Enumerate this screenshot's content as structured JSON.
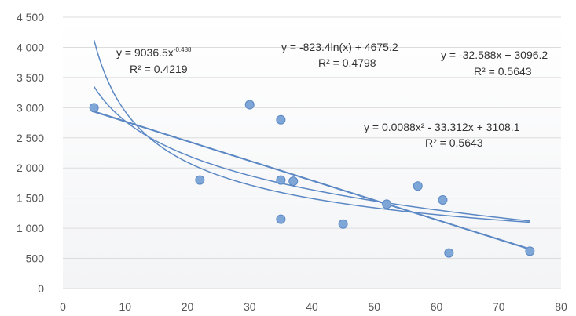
{
  "chart_data": {
    "type": "scatter",
    "title": "",
    "xlabel": "",
    "ylabel": "",
    "xlim": [
      0,
      80
    ],
    "ylim": [
      0,
      4500
    ],
    "x_ticks": [
      0,
      10,
      20,
      30,
      40,
      50,
      60,
      70,
      80
    ],
    "y_ticks": [
      0,
      500,
      1000,
      1500,
      2000,
      2500,
      3000,
      3500,
      4000,
      4500
    ],
    "y_tick_labels": [
      "0",
      "500",
      "1 000",
      "1 500",
      "2 000",
      "2 500",
      "3 000",
      "3 500",
      "4 000",
      "4 500"
    ],
    "grid": "horizontal",
    "legend": "none",
    "colors": {
      "point": "#7ea7d8",
      "point_edge": "#5b88c4",
      "trend": "#5b88c4",
      "grid": "#dcdcdc",
      "axis_text": "#555555"
    },
    "points": [
      {
        "x": 5,
        "y": 3000
      },
      {
        "x": 22,
        "y": 1800
      },
      {
        "x": 30,
        "y": 3050
      },
      {
        "x": 35,
        "y": 2800
      },
      {
        "x": 35,
        "y": 1800
      },
      {
        "x": 37,
        "y": 1780
      },
      {
        "x": 35,
        "y": 1150
      },
      {
        "x": 45,
        "y": 1070
      },
      {
        "x": 52,
        "y": 1400
      },
      {
        "x": 57,
        "y": 1700
      },
      {
        "x": 61,
        "y": 1470
      },
      {
        "x": 62,
        "y": 590
      },
      {
        "x": 75,
        "y": 620
      }
    ],
    "trendlines": [
      {
        "type": "power",
        "a": 9036.5,
        "b": -0.488,
        "x_range": [
          5,
          75
        ],
        "equation_main": "y = 9036.5x",
        "equation_sup": "-0.488",
        "r2": "R² = 0.4219"
      },
      {
        "type": "log",
        "a": -823.4,
        "b": 4675.2,
        "x_range": [
          5,
          75
        ],
        "equation_main": "y = -823.4ln(x) + 4675.2",
        "equation_sup": "",
        "r2": "R² = 0.4798"
      },
      {
        "type": "linear",
        "a": -32.588,
        "b": 3096.2,
        "x_range": [
          5,
          75
        ],
        "equation_main": "y = -32.588x + 3096.2",
        "equation_sup": "",
        "r2": "R² = 0.5643"
      },
      {
        "type": "poly2",
        "a": 0.0088,
        "b": -33.312,
        "c": 3108.1,
        "x_range": [
          5,
          75
        ],
        "equation_main": "y = 0.0088x² - 33.312x + 3108.1",
        "equation_sup": "",
        "r2": "R² = 0.5643"
      }
    ]
  }
}
